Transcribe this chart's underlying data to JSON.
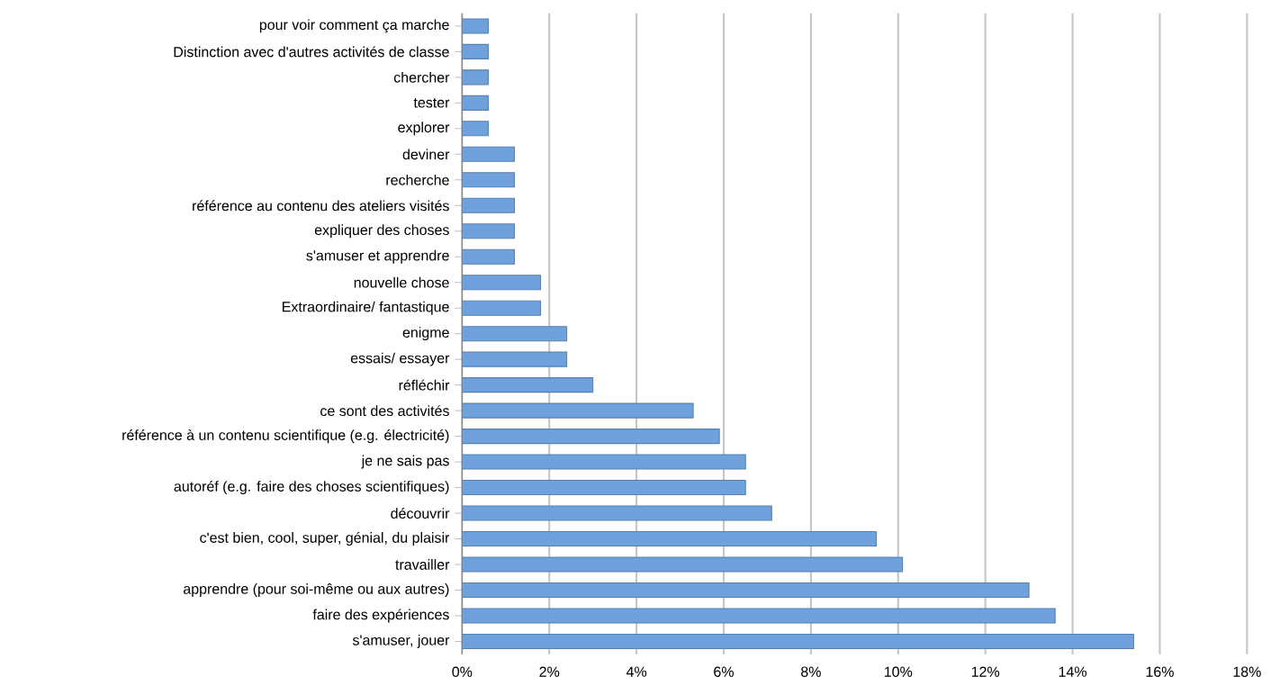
{
  "chart_data": {
    "type": "bar",
    "orientation": "horizontal",
    "categories": [
      "pour voir comment ça marche",
      "Distinction avec d'autres activités de classe",
      "chercher",
      "tester",
      "explorer",
      "deviner",
      "recherche",
      "référence au contenu des ateliers visités",
      "expliquer des choses",
      "s'amuser et apprendre",
      "nouvelle chose",
      "Extraordinaire/ fantastique",
      "enigme",
      "essais/ essayer",
      "réfléchir",
      "ce sont des activités",
      "référence à un contenu scientifique (e.g. électricité)",
      "je ne sais pas",
      "autoréf (e.g. faire des choses scientifiques)",
      "découvrir",
      "c'est bien, cool, super, génial, du plaisir",
      "travailler",
      "apprendre (pour soi-même ou aux autres)",
      "faire des expériences",
      "s'amuser, jouer"
    ],
    "values": [
      0.6,
      0.6,
      0.6,
      0.6,
      0.6,
      1.2,
      1.2,
      1.2,
      1.2,
      1.2,
      1.8,
      1.8,
      2.4,
      2.4,
      3.0,
      5.3,
      5.9,
      6.5,
      6.5,
      7.1,
      9.5,
      10.1,
      13.0,
      13.6,
      15.4
    ],
    "color": "#6fa1dc",
    "xlim": [
      0,
      18
    ],
    "xticks": [
      {
        "value": 0,
        "label": "0%"
      },
      {
        "value": 2,
        "label": "2%"
      },
      {
        "value": 4,
        "label": "4%"
      },
      {
        "value": 6,
        "label": "6%"
      },
      {
        "value": 8,
        "label": "8%"
      },
      {
        "value": 10,
        "label": "10%"
      },
      {
        "value": 12,
        "label": "12%"
      },
      {
        "value": 14,
        "label": "14%"
      },
      {
        "value": 16,
        "label": "16%"
      },
      {
        "value": 18,
        "label": "18%"
      }
    ],
    "grid": "x"
  }
}
